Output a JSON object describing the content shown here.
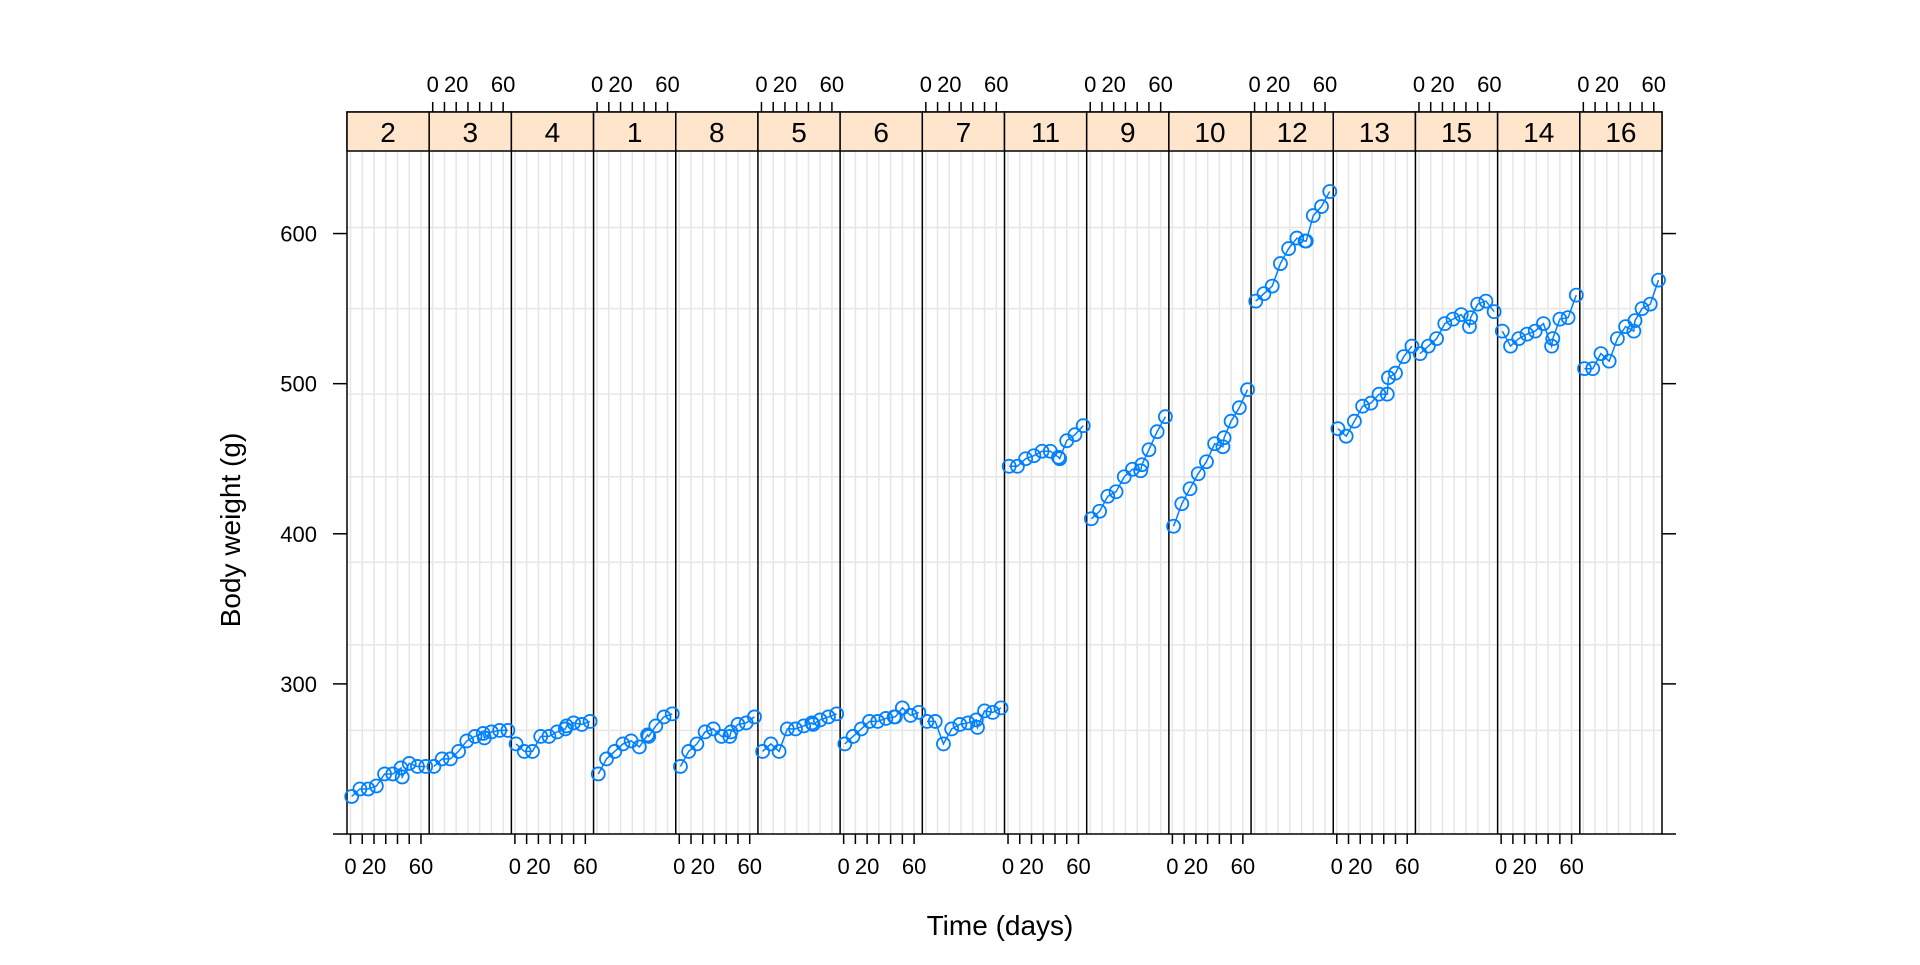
{
  "colors": {
    "strip_bg": "#ffe5cc",
    "series": "#0080ff",
    "grid": "#e6e6e6",
    "frame": "#000000"
  },
  "chart_data": {
    "type": "line",
    "xlabel": "Time (days)",
    "ylabel": "Body weight (g)",
    "xlim": [
      -3,
      67
    ],
    "ylim": [
      200,
      655
    ],
    "x_ticks": [
      0,
      10,
      20,
      30,
      40,
      50,
      60
    ],
    "x_tick_labels": [
      "0",
      "20",
      "",
      "60"
    ],
    "x_tick_label_values": [
      0,
      20,
      40,
      60
    ],
    "y_ticks": [
      200,
      300,
      400,
      500,
      600
    ],
    "y_tick_labels": [
      "",
      "300",
      "400",
      "500",
      "600"
    ],
    "grid": true,
    "markers": "open-circle",
    "x": [
      1,
      8,
      15,
      22,
      29,
      36,
      43,
      44,
      50,
      57,
      64
    ],
    "panels": [
      {
        "name": "2",
        "values": [
          225,
          230,
          230,
          232,
          240,
          240,
          244,
          238,
          247,
          245,
          245
        ]
      },
      {
        "name": "3",
        "values": [
          245,
          250,
          250,
          255,
          262,
          265,
          267,
          264,
          268,
          269,
          269
        ]
      },
      {
        "name": "4",
        "values": [
          260,
          255,
          255,
          265,
          265,
          268,
          270,
          272,
          274,
          273,
          275
        ]
      },
      {
        "name": "1",
        "values": [
          240,
          250,
          255,
          260,
          262,
          258,
          266,
          265,
          272,
          278,
          280
        ]
      },
      {
        "name": "8",
        "values": [
          245,
          255,
          260,
          268,
          270,
          265,
          265,
          268,
          273,
          274,
          278
        ]
      },
      {
        "name": "5",
        "values": [
          255,
          260,
          255,
          270,
          270,
          272,
          274,
          273,
          276,
          278,
          280
        ]
      },
      {
        "name": "6",
        "values": [
          260,
          265,
          270,
          275,
          275,
          277,
          278,
          278,
          284,
          279,
          281
        ]
      },
      {
        "name": "7",
        "values": [
          275,
          275,
          260,
          270,
          273,
          274,
          276,
          271,
          282,
          281,
          284
        ]
      },
      {
        "name": "11",
        "values": [
          445,
          445,
          450,
          452,
          455,
          455,
          451,
          450,
          462,
          466,
          472
        ]
      },
      {
        "name": "9",
        "values": [
          410,
          415,
          425,
          428,
          438,
          443,
          442,
          446,
          456,
          468,
          478
        ]
      },
      {
        "name": "10",
        "values": [
          405,
          420,
          430,
          440,
          448,
          460,
          458,
          464,
          475,
          484,
          496
        ]
      },
      {
        "name": "12",
        "values": [
          555,
          560,
          565,
          580,
          590,
          597,
          595,
          595,
          612,
          618,
          628
        ]
      },
      {
        "name": "13",
        "values": [
          470,
          465,
          475,
          485,
          487,
          493,
          493,
          504,
          507,
          518,
          525
        ]
      },
      {
        "name": "15",
        "values": [
          520,
          525,
          530,
          540,
          543,
          546,
          538,
          544,
          553,
          555,
          548
        ]
      },
      {
        "name": "14",
        "values": [
          535,
          525,
          530,
          533,
          535,
          540,
          525,
          530,
          543,
          544,
          559
        ]
      },
      {
        "name": "16",
        "values": [
          510,
          510,
          520,
          515,
          530,
          538,
          535,
          542,
          550,
          553,
          569
        ]
      }
    ]
  }
}
